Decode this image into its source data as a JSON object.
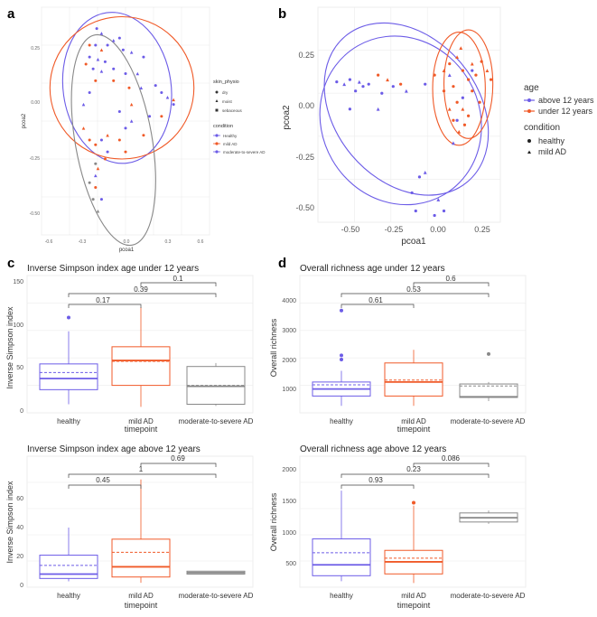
{
  "panels": {
    "a": {
      "letter": "a",
      "xlabel": "pcoa1",
      "ylabel": "pcoa2",
      "xticks": [
        "-0.6",
        "-0.3",
        "0.0",
        "0.3",
        "0.6"
      ],
      "yticks": [
        "0.25",
        "0.00",
        "-0.25",
        "-0.50"
      ],
      "legend1_title": "skin_physio",
      "legend1_items": [
        "dry",
        "moist",
        "sebaceous"
      ],
      "legend2_title": "condition",
      "legend2_items": [
        "Healthy",
        "mild AD",
        "moderate-to-severe AD"
      ]
    },
    "b": {
      "letter": "b",
      "xlabel": "pcoa1",
      "ylabel": "pcoa2",
      "xticks": [
        "-0.50",
        "-0.25",
        "0.00",
        "0.25"
      ],
      "yticks": [
        "0.25",
        "0.00",
        "-0.25",
        "-0.50"
      ],
      "legend1_title": "age",
      "legend1_items": [
        "above 12 years",
        "under 12 years"
      ],
      "legend2_title": "condition",
      "legend2_items": [
        "healthy",
        "mild AD"
      ]
    },
    "c": {
      "letter": "c",
      "top_title": "Inverse Simpson index age under 12 years",
      "bottom_title": "Inverse Simpson index age above 12 years",
      "ylabel": "Inverse Simpson index",
      "xlabel": "timepoint",
      "categories": [
        "healthy",
        "mild AD",
        "moderate-to-severe AD"
      ],
      "top_yticks": [
        "0",
        "50",
        "100",
        "150"
      ],
      "top_pvals": [
        "0.17",
        "0.39",
        "0.1"
      ],
      "bottom_yticks": [
        "0",
        "20",
        "40",
        "60"
      ],
      "bottom_pvals": [
        "0.45",
        "1",
        "0.69"
      ]
    },
    "d": {
      "letter": "d",
      "top_title": "Overall richness age under 12 years",
      "bottom_title": "Overall richness age above 12 years",
      "ylabel": "Overall richness",
      "xlabel": "timepoint",
      "categories": [
        "healthy",
        "mild AD",
        "moderate-to-severe AD"
      ],
      "top_yticks": [
        "1000",
        "2000",
        "3000",
        "4000"
      ],
      "top_pvals": [
        "0.61",
        "0.53",
        "0.6"
      ],
      "bottom_yticks": [
        "500",
        "1000",
        "1500",
        "2000"
      ],
      "bottom_pvals": [
        "0.93",
        "0.23",
        "0.086"
      ]
    }
  },
  "colors": {
    "healthy": "#6c5ce7",
    "mild": "#f05a28",
    "moderate": "#888888",
    "grid": "#e6e6e6",
    "panel_bg": "#ffffff"
  },
  "chart_data": [
    {
      "type": "scatter",
      "panel": "a",
      "xlabel": "pcoa1",
      "ylabel": "pcoa2",
      "xlim": [
        -0.65,
        0.75
      ],
      "ylim": [
        -0.6,
        0.36
      ],
      "series": [
        {
          "name": "Healthy",
          "color": "#6c5ce7",
          "points": [
            [
              -0.19,
              0.27
            ],
            [
              -0.15,
              0.25
            ],
            [
              -0.2,
              0.2
            ],
            [
              -0.1,
              0.2
            ],
            [
              -0.05,
              0.22
            ],
            [
              0.0,
              0.23
            ],
            [
              -0.25,
              0.15
            ],
            [
              -0.18,
              0.14
            ],
            [
              -0.12,
              0.13
            ],
            [
              0.03,
              0.18
            ],
            [
              0.1,
              0.17
            ],
            [
              0.2,
              0.15
            ],
            [
              -0.22,
              0.1
            ],
            [
              -0.15,
              0.09
            ],
            [
              -0.05,
              0.1
            ],
            [
              0.05,
              0.08
            ],
            [
              0.15,
              0.08
            ],
            [
              0.3,
              0.03
            ],
            [
              0.35,
              0.0
            ],
            [
              0.4,
              -0.02
            ],
            [
              0.45,
              -0.05
            ],
            [
              0.25,
              -0.1
            ],
            [
              0.1,
              -0.12
            ],
            [
              0.0,
              -0.08
            ],
            [
              -0.25,
              0.0
            ],
            [
              -0.3,
              -0.05
            ],
            [
              -0.15,
              -0.2
            ],
            [
              -0.1,
              -0.25
            ],
            [
              -0.2,
              -0.35
            ],
            [
              -0.15,
              -0.45
            ],
            [
              0.05,
              -0.15
            ],
            [
              0.18,
              0.02
            ]
          ]
        },
        {
          "name": "mild AD",
          "color": "#f05a28",
          "points": [
            [
              -0.25,
              0.2
            ],
            [
              -0.15,
              0.18
            ],
            [
              -0.28,
              0.12
            ],
            [
              -0.2,
              0.05
            ],
            [
              -0.3,
              -0.15
            ],
            [
              -0.25,
              -0.2
            ],
            [
              -0.2,
              -0.22
            ],
            [
              -0.1,
              -0.18
            ],
            [
              0.0,
              -0.2
            ],
            [
              0.05,
              -0.25
            ],
            [
              -0.18,
              -0.32
            ],
            [
              -0.2,
              -0.4
            ],
            [
              -0.12,
              -0.28
            ],
            [
              0.1,
              -0.05
            ],
            [
              0.2,
              -0.18
            ],
            [
              0.35,
              -0.1
            ],
            [
              0.45,
              -0.03
            ],
            [
              -0.05,
              0.05
            ],
            [
              0.08,
              0.02
            ]
          ]
        },
        {
          "name": "moderate-to-severe AD",
          "color": "#888888",
          "points": [
            [
              -0.22,
              -0.45
            ],
            [
              -0.18,
              -0.5
            ],
            [
              -0.25,
              -0.38
            ],
            [
              -0.2,
              -0.3
            ]
          ]
        }
      ],
      "ellipses": [
        {
          "name": "Healthy",
          "color": "#6c5ce7",
          "cx": -0.02,
          "cy": 0.02,
          "rx": 0.45,
          "ry": 0.32,
          "rot": -8
        },
        {
          "name": "mild AD",
          "color": "#f05a28",
          "cx": 0.02,
          "cy": 0.02,
          "rx": 0.6,
          "ry": 0.3,
          "rot": 0
        },
        {
          "name": "moderate-to-severe AD",
          "color": "#888888",
          "cx": -0.05,
          "cy": -0.2,
          "rx": 0.32,
          "ry": 0.45,
          "rot": -10
        }
      ]
    },
    {
      "type": "scatter",
      "panel": "b",
      "xlabel": "pcoa1",
      "ylabel": "pcoa2",
      "xlim": [
        -0.62,
        0.35
      ],
      "ylim": [
        -0.55,
        0.4
      ],
      "series": [
        {
          "name": "above 12 years",
          "color": "#6c5ce7",
          "points": [
            [
              -0.52,
              0.07
            ],
            [
              -0.48,
              0.06
            ],
            [
              -0.45,
              0.08
            ],
            [
              -0.42,
              0.03
            ],
            [
              -0.4,
              0.07
            ],
            [
              -0.38,
              0.05
            ],
            [
              -0.35,
              0.06
            ],
            [
              -0.3,
              -0.05
            ],
            [
              -0.28,
              0.02
            ],
            [
              -0.22,
              0.05
            ],
            [
              -0.15,
              0.03
            ],
            [
              -0.05,
              0.06
            ],
            [
              -0.08,
              -0.35
            ],
            [
              -0.05,
              -0.33
            ],
            [
              -0.12,
              -0.42
            ],
            [
              -0.1,
              -0.5
            ],
            [
              0.02,
              -0.45
            ],
            [
              0.05,
              -0.5
            ],
            [
              0.0,
              -0.52
            ],
            [
              0.1,
              -0.2
            ],
            [
              0.12,
              -0.1
            ],
            [
              0.15,
              0.0
            ],
            [
              0.08,
              0.1
            ],
            [
              0.2,
              0.12
            ],
            [
              -0.45,
              -0.05
            ]
          ]
        },
        {
          "name": "under 12 years",
          "color": "#f05a28",
          "points": [
            [
              -0.3,
              0.1
            ],
            [
              -0.25,
              0.08
            ],
            [
              -0.18,
              0.06
            ],
            [
              0.0,
              0.1
            ],
            [
              0.05,
              0.12
            ],
            [
              0.08,
              0.15
            ],
            [
              0.1,
              0.05
            ],
            [
              0.12,
              0.18
            ],
            [
              0.15,
              0.12
            ],
            [
              0.18,
              0.08
            ],
            [
              0.2,
              0.15
            ],
            [
              0.22,
              0.1
            ],
            [
              0.25,
              0.16
            ],
            [
              0.28,
              0.12
            ],
            [
              0.3,
              0.08
            ],
            [
              0.12,
              -0.02
            ],
            [
              0.15,
              -0.05
            ],
            [
              0.18,
              -0.08
            ],
            [
              0.1,
              -0.1
            ],
            [
              0.13,
              -0.15
            ],
            [
              0.16,
              -0.12
            ],
            [
              0.05,
              0.03
            ],
            [
              0.08,
              -0.05
            ],
            [
              0.2,
              0.03
            ],
            [
              0.24,
              -0.02
            ],
            [
              0.14,
              0.22
            ]
          ]
        }
      ],
      "ellipses": [
        {
          "name": "above 12 years",
          "color": "#6c5ce7",
          "cx": -0.18,
          "cy": -0.1,
          "rx": 0.42,
          "ry": 0.38,
          "rot": -30
        },
        {
          "name": "above 12 years",
          "color": "#6c5ce7",
          "cx": -0.15,
          "cy": -0.05,
          "rx": 0.38,
          "ry": 0.42,
          "rot": -40
        },
        {
          "name": "under 12 years",
          "color": "#f05a28",
          "cx": 0.13,
          "cy": 0.04,
          "rx": 0.14,
          "ry": 0.25,
          "rot": 0
        },
        {
          "name": "under 12 years",
          "color": "#f05a28",
          "cx": 0.18,
          "cy": 0.06,
          "rx": 0.13,
          "ry": 0.24,
          "rot": 0
        }
      ]
    },
    {
      "type": "box",
      "panel": "c-top",
      "title": "Inverse Simpson index age under 12 years",
      "xlabel": "timepoint",
      "ylabel": "Inverse Simpson index",
      "ylim": [
        -5,
        155
      ],
      "categories": [
        "healthy",
        "mild AD",
        "moderate-to-severe AD"
      ],
      "boxes": [
        {
          "q1": 22,
          "median": 35,
          "q3": 52,
          "whislo": 5,
          "whishi": 90,
          "mean": 42,
          "outliers": [
            106
          ]
        },
        {
          "q1": 27,
          "median": 56,
          "q3": 72,
          "whislo": 2,
          "whishi": 118,
          "mean": 55,
          "outliers": []
        },
        {
          "q1": 5,
          "median": 26,
          "q3": 49,
          "whislo": 3,
          "whishi": 53,
          "mean": 27,
          "outliers": []
        }
      ],
      "pvalues": [
        {
          "pair": [
            0,
            1
          ],
          "label": "0.17"
        },
        {
          "pair": [
            0,
            2
          ],
          "label": "0.39"
        },
        {
          "pair": [
            1,
            2
          ],
          "label": "0.1"
        }
      ]
    },
    {
      "type": "box",
      "panel": "c-bottom",
      "title": "Inverse Simpson index age above 12 years",
      "xlabel": "timepoint",
      "ylabel": "Inverse Simpson index",
      "ylim": [
        -2,
        88
      ],
      "categories": [
        "healthy",
        "mild AD",
        "moderate-to-severe AD"
      ],
      "boxes": [
        {
          "q1": 4,
          "median": 7,
          "q3": 20,
          "whislo": 2,
          "whishi": 39,
          "mean": 13,
          "outliers": []
        },
        {
          "q1": 5,
          "median": 12,
          "q3": 31,
          "whislo": 1,
          "whishi": 72,
          "mean": 22,
          "outliers": []
        },
        {
          "q1": 7,
          "median": 8,
          "q3": 9,
          "whislo": 7,
          "whishi": 9,
          "mean": 8,
          "outliers": []
        }
      ],
      "pvalues": [
        {
          "pair": [
            0,
            1
          ],
          "label": "0.45"
        },
        {
          "pair": [
            0,
            2
          ],
          "label": "1"
        },
        {
          "pair": [
            1,
            2
          ],
          "label": "0.69"
        }
      ]
    },
    {
      "type": "box",
      "panel": "d-top",
      "title": "Overall richness age under 12 years",
      "xlabel": "timepoint",
      "ylabel": "Overall richness",
      "ylim": [
        0,
        4900
      ],
      "categories": [
        "healthy",
        "mild AD",
        "moderate-to-severe AD"
      ],
      "boxes": [
        {
          "q1": 600,
          "median": 850,
          "q3": 1100,
          "whislo": 250,
          "whishi": 1500,
          "mean": 1000,
          "outliers": [
            1900,
            2050,
            3650
          ]
        },
        {
          "q1": 600,
          "median": 1100,
          "q3": 1780,
          "whislo": 250,
          "whishi": 2250,
          "mean": 1170,
          "outliers": []
        },
        {
          "q1": 550,
          "median": 570,
          "q3": 1030,
          "whislo": 420,
          "whishi": 1100,
          "mean": 960,
          "outliers": [
            2100
          ]
        }
      ],
      "pvalues": [
        {
          "pair": [
            0,
            1
          ],
          "label": "0.61"
        },
        {
          "pair": [
            0,
            2
          ],
          "label": "0.53"
        },
        {
          "pair": [
            1,
            2
          ],
          "label": "0.6"
        }
      ]
    },
    {
      "type": "box",
      "panel": "d-bottom",
      "title": "Overall richness age above 12 years",
      "xlabel": "timepoint",
      "ylabel": "Overall richness",
      "ylim": [
        150,
        2320
      ],
      "categories": [
        "healthy",
        "mild AD",
        "moderate-to-severe AD"
      ],
      "boxes": [
        {
          "q1": 340,
          "median": 520,
          "q3": 950,
          "whislo": 250,
          "whishi": 1750,
          "mean": 720,
          "outliers": []
        },
        {
          "q1": 370,
          "median": 570,
          "q3": 760,
          "whislo": 220,
          "whishi": 1500,
          "mean": 630,
          "outliers": [
            1550
          ]
        },
        {
          "q1": 1230,
          "median": 1300,
          "q3": 1380,
          "whislo": 1200,
          "whishi": 1420,
          "mean": 1300,
          "outliers": []
        }
      ],
      "pvalues": [
        {
          "pair": [
            0,
            1
          ],
          "label": "0.93"
        },
        {
          "pair": [
            0,
            2
          ],
          "label": "0.23"
        },
        {
          "pair": [
            1,
            2
          ],
          "label": "0.086"
        }
      ]
    }
  ]
}
